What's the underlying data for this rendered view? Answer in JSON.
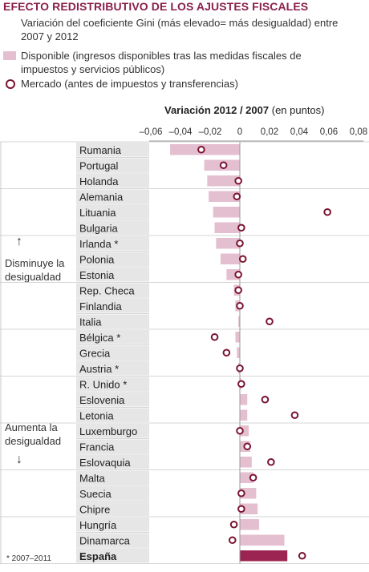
{
  "title": "EFECTO REDISTRIBUTIVO DE LOS AJUSTES FISCALES",
  "subtitle": "Variación del coeficiente Gini (más elevado= más desigualdad) entre 2007 y 2012",
  "legend": {
    "bar_label": "Disponible (ingresos disponibles tras las medidas fiscales de impuestos y servicios públicos)",
    "dot_label": "Mercado (antes de impuestos y transferencias)"
  },
  "axis_title_bold": "Variación 2012 / 2007",
  "axis_title_unit": "(en puntos)",
  "note_top": "Disminuye la desigualdad",
  "note_bottom": "Aumenta la desigualdad",
  "arrow_up": "↑",
  "arrow_down": "↓",
  "footnote": "* 2007–2011",
  "colors": {
    "bar": "#e4bfcf",
    "bar_highlight": "#9b2452",
    "dot": "#7a1230",
    "label_bg": "#e6e6e6",
    "title": "#8a1f4a"
  },
  "chart_data": {
    "type": "bar",
    "orientation": "horizontal",
    "xlim": [
      -0.06,
      0.08
    ],
    "xticks": [
      "–0,06",
      "–0,04",
      "–0,02",
      "0",
      "0,02",
      "0,04",
      "0,06",
      "0,08"
    ],
    "xtick_values": [
      -0.06,
      -0.04,
      -0.02,
      0,
      0.02,
      0.04,
      0.06,
      0.08
    ],
    "categories": [
      "Rumania",
      "Portugal",
      "Holanda",
      "Alemania",
      "Lituania",
      "Bulgaria",
      "Irlanda *",
      "Polonia",
      "Estonia",
      "Rep. Checa",
      "Finlandia",
      "Italia",
      "Bélgica *",
      "Grecia",
      "Austria *",
      "R. Unido *",
      "Eslovenia",
      "Letonia",
      "Luxemburgo",
      "Francia",
      "Eslovaquia",
      "Malta",
      "Suecia",
      "Chipre",
      "Hungría",
      "Dinamarca",
      "España"
    ],
    "highlight": "España",
    "series": [
      {
        "name": "Disponible",
        "values": [
          -0.047,
          -0.024,
          -0.022,
          -0.021,
          -0.018,
          -0.017,
          -0.016,
          -0.013,
          -0.009,
          -0.004,
          -0.003,
          -0.001,
          -0.003,
          -0.002,
          -0.001,
          0.001,
          0.005,
          0.005,
          0.006,
          0.007,
          0.008,
          0.009,
          0.011,
          0.012,
          0.013,
          0.03,
          0.032
        ]
      },
      {
        "name": "Mercado",
        "values": [
          -0.026,
          -0.011,
          -0.001,
          -0.002,
          0.059,
          0.001,
          0.0,
          0.002,
          -0.001,
          -0.001,
          0.0,
          0.02,
          -0.017,
          -0.009,
          0.0,
          0.001,
          0.017,
          0.037,
          0.0,
          0.005,
          0.021,
          0.009,
          0.001,
          0.001,
          -0.004,
          -0.005,
          0.042
        ]
      }
    ]
  }
}
